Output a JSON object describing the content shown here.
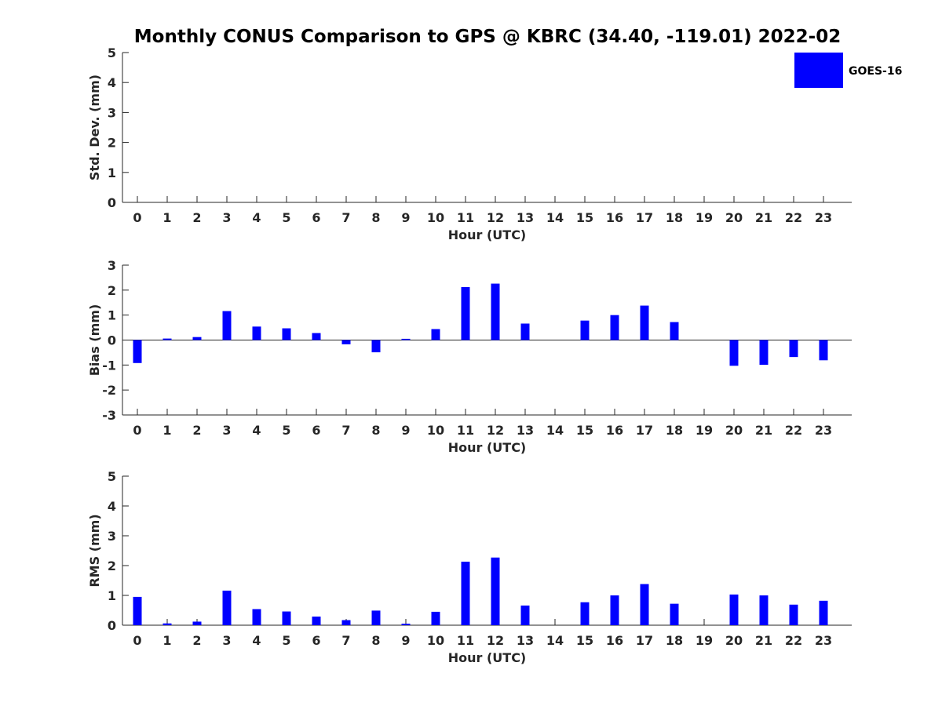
{
  "title": "Monthly CONUS Comparison to GPS @ KBRC (34.40, -119.01) 2022-02",
  "colors": {
    "bar": "#0000ff",
    "axis": "#262626"
  },
  "legend": {
    "label": "GOES-16",
    "placement": "top-right (outside plot)"
  },
  "chart_data": [
    {
      "type": "bar",
      "ylabel": "Std. Dev. (mm)",
      "xlabel": "Hour (UTC)",
      "ylim": [
        0,
        5
      ],
      "yticks": [
        0,
        1,
        2,
        3,
        4,
        5
      ],
      "categories": [
        "0",
        "1",
        "2",
        "3",
        "4",
        "5",
        "6",
        "7",
        "8",
        "9",
        "10",
        "11",
        "12",
        "13",
        "14",
        "15",
        "16",
        "17",
        "18",
        "19",
        "20",
        "21",
        "22",
        "23"
      ],
      "series": [
        {
          "name": "GOES-16",
          "values": [
            0,
            0,
            0,
            0,
            0,
            0,
            0,
            0,
            0,
            0,
            0,
            0,
            0,
            0,
            0,
            0,
            0,
            0,
            0,
            0,
            0,
            0,
            0,
            0
          ]
        }
      ]
    },
    {
      "type": "bar",
      "ylabel": "Bias (mm)",
      "xlabel": "Hour (UTC)",
      "ylim": [
        -3,
        3
      ],
      "yticks": [
        -3,
        -2,
        -1,
        0,
        1,
        2,
        3
      ],
      "zero_line": true,
      "categories": [
        "0",
        "1",
        "2",
        "3",
        "4",
        "5",
        "6",
        "7",
        "8",
        "9",
        "10",
        "11",
        "12",
        "13",
        "14",
        "15",
        "16",
        "17",
        "18",
        "19",
        "20",
        "21",
        "22",
        "23"
      ],
      "series": [
        {
          "name": "GOES-16",
          "values": [
            -0.92,
            0.06,
            0.12,
            1.16,
            0.54,
            0.47,
            0.28,
            -0.17,
            -0.49,
            0.05,
            0.44,
            2.12,
            2.26,
            0.66,
            null,
            0.78,
            1.0,
            1.38,
            0.72,
            null,
            -1.03,
            -0.99,
            -0.68,
            -0.81
          ]
        }
      ]
    },
    {
      "type": "bar",
      "ylabel": "RMS (mm)",
      "xlabel": "Hour (UTC)",
      "ylim": [
        0,
        5
      ],
      "yticks": [
        0,
        1,
        2,
        3,
        4,
        5
      ],
      "categories": [
        "0",
        "1",
        "2",
        "3",
        "4",
        "5",
        "6",
        "7",
        "8",
        "9",
        "10",
        "11",
        "12",
        "13",
        "14",
        "15",
        "16",
        "17",
        "18",
        "19",
        "20",
        "21",
        "22",
        "23"
      ],
      "series": [
        {
          "name": "GOES-16",
          "values": [
            0.95,
            0.06,
            0.12,
            1.16,
            0.54,
            0.46,
            0.29,
            0.17,
            0.49,
            0.05,
            0.45,
            2.13,
            2.27,
            0.66,
            null,
            0.77,
            1.0,
            1.38,
            0.72,
            null,
            1.03,
            1.0,
            0.69,
            0.82
          ]
        }
      ]
    }
  ]
}
